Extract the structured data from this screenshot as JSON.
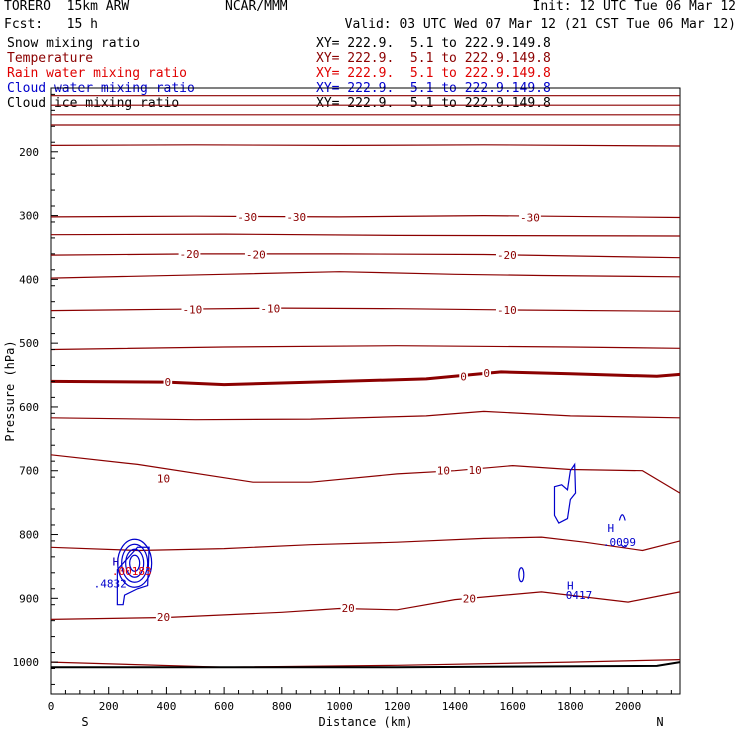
{
  "header": {
    "model": "TORERO  15km ARW",
    "org": "NCAR/MMM",
    "init": "Init: 12 UTC Tue 06 Mar 12",
    "fcst": "Fcst:   15 h",
    "valid": "Valid: 03 UTC Wed 07 Mar 12 (21 CST Tue 06 Mar 12)"
  },
  "fields": [
    {
      "name": "Snow mixing ratio",
      "xy": "XY= 222.9.  5.1 to 222.9.149.8",
      "color": "#000000"
    },
    {
      "name": "Temperature",
      "xy": "XY= 222.9.  5.1 to 222.9.149.8",
      "color": "#8b0000"
    },
    {
      "name": "Rain water mixing ratio",
      "xy": "XY= 222.9.  5.1 to 222.9.149.8",
      "color": "#e00000"
    },
    {
      "name": "Cloud water mixing ratio",
      "xy": "XY= 222.9.  5.1 to 222.9.149.8",
      "color": "#0000cc"
    },
    {
      "name": "Cloud ice mixing ratio",
      "xy": "XY= 222.9.  5.1 to 222.9.149.8",
      "color": "#000000"
    }
  ],
  "chart_data": {
    "type": "line",
    "subtype": "vertical cross-section",
    "xlabel": "Distance (km)",
    "ylabel": "Pressure (hPa)",
    "xlim": [
      0,
      2180
    ],
    "ylim": [
      1050,
      100
    ],
    "x_ticks": [
      0,
      200,
      400,
      600,
      800,
      1000,
      1200,
      1400,
      1600,
      1800,
      2000
    ],
    "y_ticks": [
      200,
      300,
      400,
      500,
      600,
      700,
      800,
      900,
      1000
    ],
    "endpoint_labels": {
      "left": "S",
      "right": "N"
    },
    "temperature_contours": {
      "interval_C": 5,
      "color": "#8b0000",
      "lines": [
        {
          "value": -55,
          "points": [
            [
              0,
              112
            ],
            [
              2180,
              112
            ]
          ]
        },
        {
          "value": -50,
          "points": [
            [
              0,
              127
            ],
            [
              2180,
              127
            ]
          ]
        },
        {
          "value": -45,
          "points": [
            [
              0,
              142
            ],
            [
              2180,
              142
            ]
          ]
        },
        {
          "value": -40,
          "points": [
            [
              0,
              158
            ],
            [
              2180,
              158
            ]
          ]
        },
        {
          "value": -35,
          "points": [
            [
              0,
              190
            ],
            [
              500,
              189
            ],
            [
              1000,
              190
            ],
            [
              1500,
              189
            ],
            [
              2180,
              191
            ]
          ]
        },
        {
          "value": -30,
          "points": [
            [
              0,
              302
            ],
            [
              500,
              301
            ],
            [
              1000,
              302
            ],
            [
              1500,
              300
            ],
            [
              2180,
              303
            ]
          ]
        },
        {
          "value": -25,
          "points": [
            [
              0,
              330
            ],
            [
              600,
              329
            ],
            [
              1200,
              331
            ],
            [
              2180,
              332
            ]
          ]
        },
        {
          "value": -20,
          "points": [
            [
              0,
              362
            ],
            [
              500,
              360
            ],
            [
              1000,
              360
            ],
            [
              1500,
              361
            ],
            [
              2180,
              366
            ]
          ]
        },
        {
          "value": -15,
          "points": [
            [
              0,
              398
            ],
            [
              600,
              392
            ],
            [
              1000,
              388
            ],
            [
              1400,
              392
            ],
            [
              1700,
              394
            ],
            [
              2180,
              396
            ]
          ]
        },
        {
          "value": -10,
          "points": [
            [
              0,
              449
            ],
            [
              400,
              447
            ],
            [
              800,
              445
            ],
            [
              1200,
              446
            ],
            [
              1600,
              448
            ],
            [
              2180,
              450
            ]
          ]
        },
        {
          "value": -5,
          "points": [
            [
              0,
              510
            ],
            [
              600,
              506
            ],
            [
              1200,
              504
            ],
            [
              1800,
              506
            ],
            [
              2180,
              508
            ]
          ]
        },
        {
          "value": 0,
          "emphasized": true,
          "points": [
            [
              0,
              560
            ],
            [
              400,
              561
            ],
            [
              600,
              565
            ],
            [
              1000,
              560
            ],
            [
              1300,
              556
            ],
            [
              1560,
              545
            ],
            [
              1800,
              548
            ],
            [
              2100,
              552
            ],
            [
              2180,
              549
            ]
          ]
        },
        {
          "value": 5,
          "points": [
            [
              0,
              617
            ],
            [
              500,
              620
            ],
            [
              900,
              619
            ],
            [
              1300,
              614
            ],
            [
              1500,
              607
            ],
            [
              1800,
              614
            ],
            [
              2180,
              617
            ]
          ]
        },
        {
          "value": 10,
          "points": [
            [
              0,
              675
            ],
            [
              300,
              690
            ],
            [
              700,
              718
            ],
            [
              900,
              718
            ],
            [
              1200,
              705
            ],
            [
              1400,
              700
            ],
            [
              1600,
              692
            ],
            [
              1800,
              698
            ],
            [
              2050,
              700
            ],
            [
              2180,
              735
            ]
          ]
        },
        {
          "value": 15,
          "points": [
            [
              0,
              820
            ],
            [
              300,
              825
            ],
            [
              600,
              822
            ],
            [
              900,
              816
            ],
            [
              1200,
              812
            ],
            [
              1500,
              806
            ],
            [
              1700,
              804
            ],
            [
              1850,
              812
            ],
            [
              2050,
              825
            ],
            [
              2180,
              810
            ]
          ]
        },
        {
          "value": 20,
          "points": [
            [
              0,
              933
            ],
            [
              400,
              930
            ],
            [
              800,
              922
            ],
            [
              1000,
              916
            ],
            [
              1200,
              918
            ],
            [
              1400,
              902
            ],
            [
              1700,
              890
            ],
            [
              2000,
              906
            ],
            [
              2180,
              890
            ]
          ]
        },
        {
          "value": 25,
          "points": [
            [
              0,
              1000
            ],
            [
              600,
              1008
            ],
            [
              1200,
              1005
            ],
            [
              1800,
              1000
            ],
            [
              2180,
              996
            ]
          ]
        }
      ],
      "labels": [
        {
          "text": "-30",
          "x": 680,
          "p": 302
        },
        {
          "text": "-30",
          "x": 850,
          "p": 302
        },
        {
          "text": "-30",
          "x": 1660,
          "p": 303
        },
        {
          "text": "-20",
          "x": 480,
          "p": 360
        },
        {
          "text": "-20",
          "x": 710,
          "p": 361
        },
        {
          "text": "-20",
          "x": 1580,
          "p": 362
        },
        {
          "text": "-10",
          "x": 490,
          "p": 447
        },
        {
          "text": "-10",
          "x": 760,
          "p": 446
        },
        {
          "text": "-10",
          "x": 1580,
          "p": 448
        },
        {
          "text": "0",
          "x": 405,
          "p": 561
        },
        {
          "text": "0",
          "x": 1430,
          "p": 552
        },
        {
          "text": "0",
          "x": 1510,
          "p": 547
        },
        {
          "text": "10",
          "x": 390,
          "p": 712
        },
        {
          "text": "10",
          "x": 1360,
          "p": 700
        },
        {
          "text": "10",
          "x": 1470,
          "p": 699
        },
        {
          "text": "20",
          "x": 390,
          "p": 929
        },
        {
          "text": "20",
          "x": 1030,
          "p": 915
        },
        {
          "text": "20",
          "x": 1450,
          "p": 900
        }
      ]
    },
    "cloud_water_contours": {
      "color": "#0000cc",
      "maxima": [
        {
          "text": "H",
          "x": 225,
          "p": 842
        },
        {
          "text": ".4832",
          "x": 205,
          "p": 877
        },
        {
          "text": "H",
          "x": 1940,
          "p": 790
        },
        {
          "text": ".0099",
          "x": 1970,
          "p": 812
        },
        {
          "text": "H",
          "x": 1800,
          "p": 880
        },
        {
          "text": "0417",
          "x": 1830,
          "p": 895
        }
      ]
    },
    "rain_water_maxima": {
      "color": "#e00000",
      "labels": [
        {
          "text": "H",
          "x": 225,
          "p": 842
        },
        {
          "text": ".00183",
          "x": 280,
          "p": 857
        }
      ]
    },
    "surface_pressure": {
      "points": [
        [
          0,
          1008
        ],
        [
          1200,
          1008
        ],
        [
          2100,
          1006
        ],
        [
          2180,
          1000
        ]
      ]
    }
  }
}
